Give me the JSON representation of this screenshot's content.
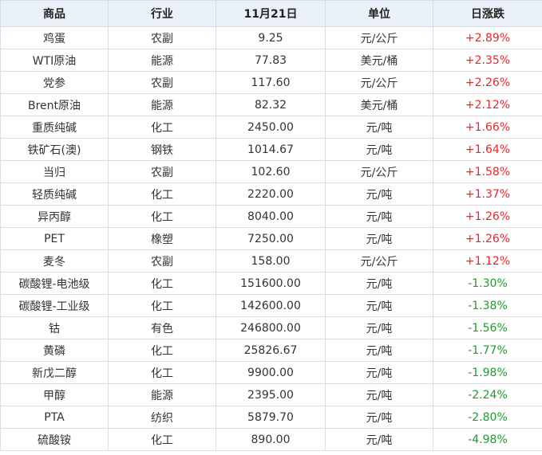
{
  "table": {
    "header": [
      "商品",
      "行业",
      "11月21日",
      "单位",
      "日涨跌"
    ],
    "rows": [
      [
        "鸡蛋",
        "农副",
        "9.25",
        "元/公斤",
        "+2.89%"
      ],
      [
        "WTI原油",
        "能源",
        "77.83",
        "美元/桶",
        "+2.35%"
      ],
      [
        "党参",
        "农副",
        "117.60",
        "元/公斤",
        "+2.26%"
      ],
      [
        "Brent原油",
        "能源",
        "82.32",
        "美元/桶",
        "+2.12%"
      ],
      [
        "重质纯碱",
        "化工",
        "2450.00",
        "元/吨",
        "+1.66%"
      ],
      [
        "铁矿石(澳)",
        "钢铁",
        "1014.67",
        "元/吨",
        "+1.64%"
      ],
      [
        "当归",
        "农副",
        "102.60",
        "元/公斤",
        "+1.58%"
      ],
      [
        "轻质纯碱",
        "化工",
        "2220.00",
        "元/吨",
        "+1.37%"
      ],
      [
        "异丙醇",
        "化工",
        "8040.00",
        "元/吨",
        "+1.26%"
      ],
      [
        "PET",
        "橡塑",
        "7250.00",
        "元/吨",
        "+1.26%"
      ],
      [
        "麦冬",
        "农副",
        "158.00",
        "元/公斤",
        "+1.12%"
      ],
      [
        "碳酸锂-电池级",
        "化工",
        "151600.00",
        "元/吨",
        "-1.30%"
      ],
      [
        "碳酸锂-工业级",
        "化工",
        "142600.00",
        "元/吨",
        "-1.38%"
      ],
      [
        "钴",
        "有色",
        "246800.00",
        "元/吨",
        "-1.56%"
      ],
      [
        "黄磷",
        "化工",
        "25826.67",
        "元/吨",
        "-1.77%"
      ],
      [
        "新戊二醇",
        "化工",
        "9900.00",
        "元/吨",
        "-1.98%"
      ],
      [
        "甲醇",
        "能源",
        "2395.00",
        "元/吨",
        "-2.24%"
      ],
      [
        "PTA",
        "纺织",
        "5879.70",
        "元/吨",
        "-2.80%"
      ],
      [
        "硫酸铵",
        "化工",
        "890.00",
        "元/吨",
        "-4.98%"
      ]
    ]
  }
}
